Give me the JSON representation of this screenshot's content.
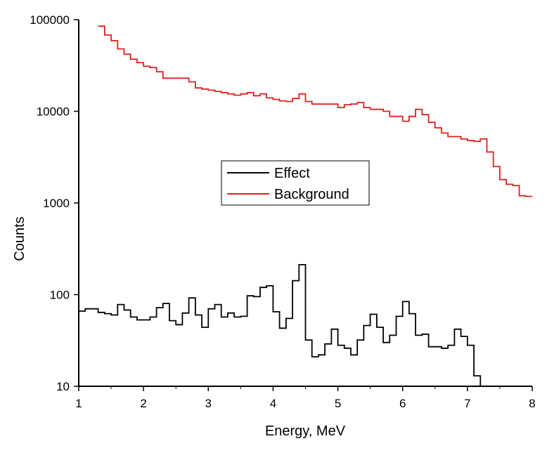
{
  "chart_data": {
    "type": "line",
    "xlabel": "Energy, MeV",
    "ylabel": "Counts",
    "xlim": [
      1,
      8
    ],
    "ylim": [
      10,
      100000
    ],
    "yscale": "log",
    "x_ticks": [
      "1",
      "2",
      "3",
      "4",
      "5",
      "6",
      "7",
      "8"
    ],
    "y_ticks": [
      "10",
      "100",
      "1000",
      "10000",
      "100000"
    ],
    "grid": false,
    "legend_position": "center",
    "series": [
      {
        "name": "Effect",
        "color": "#000000",
        "style": "step",
        "x": [
          1.0,
          1.1,
          1.2,
          1.3,
          1.4,
          1.5,
          1.6,
          1.7,
          1.8,
          1.9,
          2.0,
          2.1,
          2.2,
          2.3,
          2.4,
          2.5,
          2.6,
          2.7,
          2.8,
          2.9,
          3.0,
          3.1,
          3.2,
          3.3,
          3.4,
          3.5,
          3.6,
          3.7,
          3.8,
          3.9,
          4.0,
          4.1,
          4.2,
          4.3,
          4.4,
          4.5,
          4.6,
          4.7,
          4.8,
          4.9,
          5.0,
          5.1,
          5.2,
          5.3,
          5.4,
          5.5,
          5.6,
          5.7,
          5.8,
          5.9,
          6.0,
          6.1,
          6.2,
          6.3,
          6.4,
          6.5,
          6.6,
          6.7,
          6.8,
          6.9,
          7.0,
          7.1,
          7.2,
          7.3
        ],
        "y": [
          66,
          70,
          70,
          64,
          62,
          60,
          78,
          68,
          57,
          53,
          53,
          57,
          72,
          80,
          52,
          47,
          63,
          92,
          60,
          44,
          70,
          78,
          57,
          63,
          57,
          58,
          97,
          95,
          120,
          125,
          65,
          43,
          55,
          142,
          212,
          32,
          21,
          22,
          29,
          42,
          28,
          26,
          22,
          32,
          46,
          61,
          44,
          30,
          36,
          58,
          84,
          62,
          36,
          37,
          27,
          27,
          26,
          28,
          42,
          35,
          28,
          13,
          10,
          10
        ]
      },
      {
        "name": "Background",
        "color": "#e02020",
        "style": "step",
        "x": [
          1.3,
          1.4,
          1.5,
          1.6,
          1.7,
          1.8,
          1.9,
          2.0,
          2.1,
          2.2,
          2.3,
          2.4,
          2.5,
          2.6,
          2.7,
          2.8,
          2.9,
          3.0,
          3.1,
          3.2,
          3.3,
          3.4,
          3.5,
          3.6,
          3.7,
          3.8,
          3.9,
          4.0,
          4.1,
          4.2,
          4.3,
          4.4,
          4.5,
          4.6,
          4.7,
          4.8,
          4.9,
          5.0,
          5.1,
          5.2,
          5.3,
          5.4,
          5.5,
          5.6,
          5.7,
          5.8,
          5.9,
          6.0,
          6.1,
          6.2,
          6.3,
          6.4,
          6.5,
          6.6,
          6.7,
          6.8,
          6.9,
          7.0,
          7.1,
          7.2,
          7.3,
          7.4,
          7.5,
          7.6,
          7.7,
          7.8,
          7.9
        ],
        "y": [
          85000,
          68000,
          59000,
          48000,
          42000,
          37000,
          34000,
          31000,
          30000,
          27000,
          23000,
          23000,
          23000,
          23000,
          21000,
          18000,
          17500,
          17000,
          16500,
          16000,
          15500,
          15000,
          15500,
          16000,
          14800,
          15500,
          14000,
          13500,
          13000,
          12800,
          13800,
          15500,
          12800,
          12000,
          12000,
          12000,
          12000,
          11000,
          11800,
          12000,
          12500,
          11000,
          10500,
          10500,
          10000,
          8800,
          8800,
          7800,
          8800,
          10500,
          9200,
          7600,
          6600,
          5800,
          5300,
          5300,
          5000,
          4800,
          4700,
          5000,
          3600,
          2500,
          1800,
          1600,
          1550,
          1200,
          1180
        ]
      }
    ]
  }
}
